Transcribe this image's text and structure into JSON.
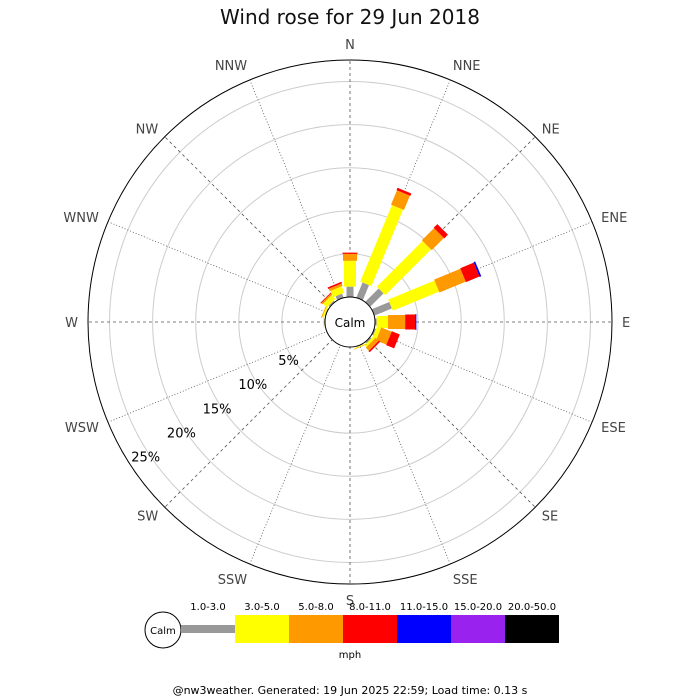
{
  "chart_data": {
    "type": "wind_rose",
    "title": "Wind rose for 29 Jun 2018",
    "directions": [
      "N",
      "NNE",
      "NE",
      "ENE",
      "E",
      "ESE",
      "SE",
      "SSE",
      "S",
      "SSW",
      "SW",
      "WSW",
      "W",
      "WNW",
      "NW",
      "NNW"
    ],
    "ring_labels": [
      "5%",
      "10%",
      "15%",
      "20%",
      "25%"
    ],
    "r_max_percent": 27.5,
    "calm_label": "Calm",
    "units": "mph",
    "speed_bins": [
      {
        "label": "1.0-3.0",
        "color": "#999999"
      },
      {
        "label": "3.0-5.0",
        "color": "#ffff00"
      },
      {
        "label": "5.0-8.0",
        "color": "#ff9900"
      },
      {
        "label": "8.0-11.0",
        "color": "#ff0000"
      },
      {
        "label": "11.0-15.0",
        "color": "#0000ff"
      },
      {
        "label": "15.0-20.0",
        "color": "#9922ee"
      },
      {
        "label": "20.0-50.0",
        "color": "#000000"
      }
    ],
    "series": [
      {
        "direction": "N",
        "segments": [
          1.2,
          3.0,
          0.8,
          0.15,
          0,
          0,
          0
        ]
      },
      {
        "direction": "NNE",
        "segments": [
          1.9,
          9.6,
          1.8,
          0.3,
          0,
          0,
          0
        ]
      },
      {
        "direction": "NE",
        "segments": [
          2.2,
          7.5,
          2.0,
          0.6,
          0,
          0,
          0
        ]
      },
      {
        "direction": "ENE",
        "segments": [
          2.2,
          5.8,
          3.3,
          1.7,
          0.2,
          0,
          0
        ]
      },
      {
        "direction": "E",
        "segments": [
          0.2,
          1.3,
          2.0,
          1.2,
          0.1,
          0,
          0
        ]
      },
      {
        "direction": "ESE",
        "segments": [
          0.2,
          0.5,
          1.3,
          1.0,
          0,
          0,
          0
        ]
      },
      {
        "direction": "SE",
        "segments": [
          0.2,
          0.3,
          0.5,
          0.2,
          0,
          0,
          0
        ]
      },
      {
        "direction": "SSE",
        "segments": [
          0.1,
          0.1,
          0.05,
          0,
          0,
          0,
          0
        ]
      },
      {
        "direction": "S",
        "segments": [
          0,
          0,
          0,
          0,
          0,
          0,
          0
        ]
      },
      {
        "direction": "SSW",
        "segments": [
          0,
          0,
          0,
          0,
          0,
          0,
          0
        ]
      },
      {
        "direction": "SW",
        "segments": [
          0,
          0,
          0,
          0,
          0,
          0,
          0
        ]
      },
      {
        "direction": "WSW",
        "segments": [
          0,
          0,
          0,
          0,
          0,
          0,
          0
        ]
      },
      {
        "direction": "W",
        "segments": [
          0.1,
          0.1,
          0,
          0,
          0,
          0,
          0
        ]
      },
      {
        "direction": "WNW",
        "segments": [
          0.1,
          0.2,
          0.1,
          0,
          0,
          0,
          0
        ]
      },
      {
        "direction": "NW",
        "segments": [
          0.2,
          0.6,
          0.2,
          0.1,
          0,
          0,
          0
        ]
      },
      {
        "direction": "NNW",
        "segments": [
          0.5,
          0.8,
          0.3,
          0.2,
          0,
          0,
          0
        ]
      }
    ],
    "grid": true
  },
  "footer": "@nw3weather. Generated: 19 Jun 2025 22:59; Load time: 0.13 s"
}
